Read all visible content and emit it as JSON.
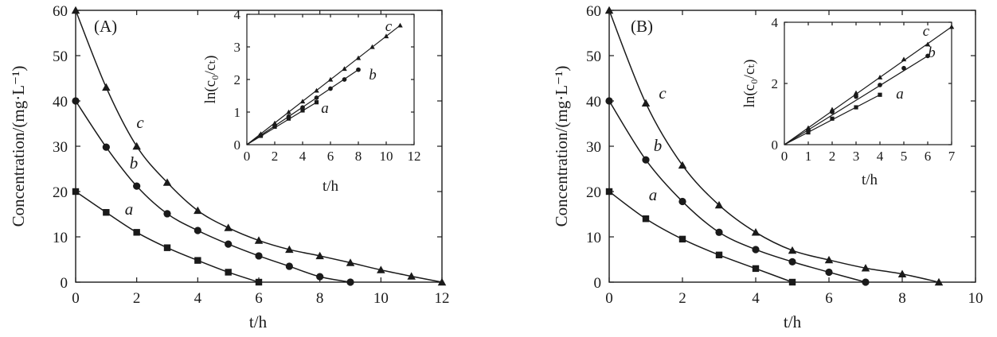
{
  "chart_data": [
    {
      "panel_label": "(A)",
      "type": "line",
      "xlabel": "t/h",
      "ylabel": "Concentration/(mg·L⁻¹)",
      "xlim": [
        0,
        12
      ],
      "ylim": [
        0,
        60
      ],
      "xticks": [
        "0",
        "2",
        "4",
        "6",
        "8",
        "10",
        "12"
      ],
      "yticks": [
        "0",
        "10",
        "20",
        "30",
        "40",
        "50",
        "60"
      ],
      "series": [
        {
          "name": "a",
          "marker": "square",
          "x": [
            0,
            1,
            2,
            3,
            4,
            5,
            6
          ],
          "y": [
            20,
            15.4,
            11,
            7.6,
            4.8,
            2.2,
            0
          ]
        },
        {
          "name": "b",
          "marker": "circle",
          "x": [
            0,
            1,
            2,
            3,
            4,
            5,
            6,
            7,
            8,
            9
          ],
          "y": [
            40,
            29.8,
            21.2,
            15.1,
            11.4,
            8.4,
            5.8,
            3.5,
            1.2,
            0
          ]
        },
        {
          "name": "c",
          "marker": "triangle",
          "x": [
            0,
            1,
            2,
            3,
            4,
            5,
            6,
            7,
            8,
            9,
            10,
            11,
            12
          ],
          "y": [
            60,
            43,
            30,
            22,
            15.8,
            12,
            9.2,
            7.2,
            5.8,
            4.3,
            2.7,
            1.3,
            0
          ]
        }
      ],
      "inset": {
        "type": "line",
        "xlabel": "t/h",
        "ylabel": "ln(c₀/cₜ)",
        "xlim": [
          0,
          12
        ],
        "ylim": [
          0,
          4
        ],
        "xticks": [
          "0",
          "2",
          "4",
          "6",
          "8",
          "10",
          "12"
        ],
        "yticks": [
          "0",
          "1",
          "2",
          "3",
          "4"
        ],
        "series": [
          {
            "name": "a",
            "marker": "square",
            "x": [
              1,
              2,
              3,
              4,
              5
            ],
            "y": [
              0.27,
              0.55,
              0.8,
              1.05,
              1.3
            ]
          },
          {
            "name": "b",
            "marker": "circle",
            "x": [
              1,
              2,
              3,
              4,
              5,
              6,
              7,
              8
            ],
            "y": [
              0.29,
              0.58,
              0.86,
              1.14,
              1.44,
              1.72,
              2.0,
              2.3
            ]
          },
          {
            "name": "c",
            "marker": "triangle",
            "x": [
              1,
              2,
              3,
              4,
              5,
              6,
              7,
              8,
              9,
              10,
              11
            ],
            "y": [
              0.33,
              0.66,
              1.0,
              1.33,
              1.66,
              2.0,
              2.33,
              2.66,
              3.0,
              3.33,
              3.66
            ]
          }
        ]
      }
    },
    {
      "panel_label": "(B)",
      "type": "line",
      "xlabel": "t/h",
      "ylabel": "Concentration/(mg·L⁻¹)",
      "xlim": [
        0,
        10
      ],
      "ylim": [
        0,
        60
      ],
      "xticks": [
        "0",
        "2",
        "4",
        "6",
        "8",
        "10"
      ],
      "yticks": [
        "0",
        "10",
        "20",
        "30",
        "40",
        "50",
        "60"
      ],
      "series": [
        {
          "name": "a",
          "marker": "square",
          "x": [
            0,
            1,
            2,
            3,
            4,
            5
          ],
          "y": [
            20,
            14,
            9.5,
            6,
            3,
            0
          ]
        },
        {
          "name": "b",
          "marker": "circle",
          "x": [
            0,
            1,
            2,
            3,
            4,
            5,
            6,
            7
          ],
          "y": [
            40,
            27,
            17.8,
            11,
            7.2,
            4.5,
            2.2,
            0
          ]
        },
        {
          "name": "c",
          "marker": "triangle",
          "x": [
            0,
            1,
            2,
            3,
            4,
            5,
            6,
            7,
            8,
            9
          ],
          "y": [
            60,
            39.5,
            25.8,
            17,
            11,
            7,
            4.9,
            3.1,
            1.8,
            0
          ]
        }
      ],
      "inset": {
        "type": "line",
        "xlabel": "t/h",
        "ylabel": "ln(c₀/cₜ)",
        "xlim": [
          0,
          7
        ],
        "ylim": [
          0,
          4
        ],
        "xticks": [
          "0",
          "1",
          "2",
          "3",
          "4",
          "5",
          "6",
          "7"
        ],
        "yticks": [
          "0",
          "2",
          "4"
        ],
        "series": [
          {
            "name": "a",
            "marker": "square",
            "x": [
              1,
              2,
              3,
              4
            ],
            "y": [
              0.4,
              0.85,
              1.22,
              1.63
            ]
          },
          {
            "name": "b",
            "marker": "circle",
            "x": [
              1,
              2,
              3,
              4,
              5,
              6
            ],
            "y": [
              0.48,
              1.07,
              1.57,
              1.95,
              2.5,
              2.9
            ]
          },
          {
            "name": "c",
            "marker": "triangle",
            "x": [
              1,
              2,
              3,
              4,
              5,
              6,
              7
            ],
            "y": [
              0.55,
              1.15,
              1.69,
              2.2,
              2.79,
              3.28,
              3.85
            ]
          }
        ]
      }
    }
  ]
}
